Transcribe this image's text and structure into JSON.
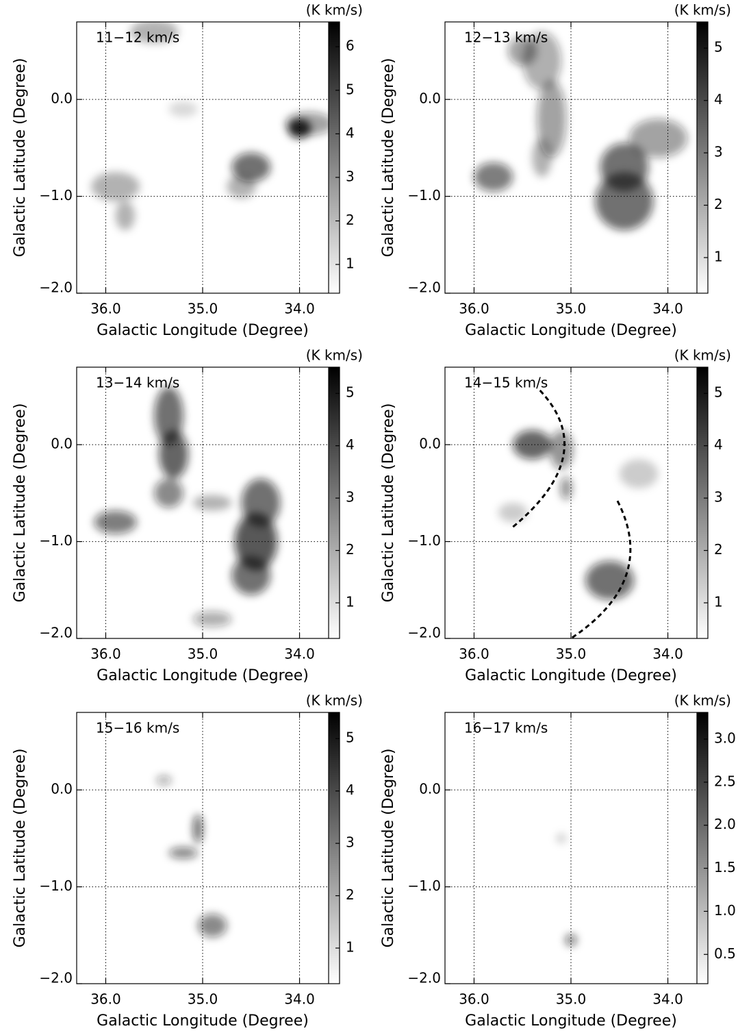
{
  "chart_data": [
    {
      "type": "map",
      "label": "11−12 km/s",
      "units": "(K km/s)",
      "x_label": "Galactic Longitude (Degree)",
      "y_label": "Galactic Latitude (Degree)",
      "xlim": [
        36.3,
        33.7
      ],
      "xticks": [
        {
          "value": 36,
          "label": "36.0"
        },
        {
          "value": 35,
          "label": "35.0"
        },
        {
          "value": 34,
          "label": "34.0"
        }
      ],
      "ylim": [
        -2.0,
        0.8
      ],
      "yticks": [
        {
          "value": 0,
          "label": "0.0"
        },
        {
          "value": -1,
          "label": "−1.0"
        },
        {
          "value": -2,
          "label": "−2.0"
        }
      ],
      "clim": [
        0.34,
        6.57
      ],
      "cticks": [
        1,
        2,
        3,
        4,
        5,
        6
      ],
      "grid": true
    },
    {
      "type": "map",
      "label": "12−13 km/s",
      "units": "(K km/s)",
      "x_label": "Galactic Longitude (Degree)",
      "y_label": "Galactic Latitude (Degree)",
      "xlim": [
        36.3,
        33.7
      ],
      "xticks": [
        {
          "value": 36,
          "label": "36.0"
        },
        {
          "value": 35,
          "label": "35.0"
        },
        {
          "value": 34,
          "label": "34.0"
        }
      ],
      "ylim": [
        -2.0,
        0.8
      ],
      "yticks": [
        {
          "value": 0,
          "label": "0.0"
        },
        {
          "value": -1,
          "label": "−1.0"
        },
        {
          "value": -2,
          "label": "−2.0"
        }
      ],
      "clim": [
        0.32,
        5.5
      ],
      "cticks": [
        1,
        2,
        3,
        4,
        5
      ],
      "grid": true
    },
    {
      "type": "map",
      "label": "13−14 km/s",
      "units": "(K km/s)",
      "x_label": "Galactic Longitude (Degree)",
      "y_label": "Galactic Latitude (Degree)",
      "xlim": [
        36.3,
        33.7
      ],
      "xticks": [
        {
          "value": 36,
          "label": "36.0"
        },
        {
          "value": 35,
          "label": "35.0"
        },
        {
          "value": 34,
          "label": "34.0"
        }
      ],
      "ylim": [
        -2.0,
        0.8
      ],
      "yticks": [
        {
          "value": 0,
          "label": "0.0"
        },
        {
          "value": -1,
          "label": "−1.0"
        },
        {
          "value": -2,
          "label": "−2.0"
        }
      ],
      "clim": [
        0.32,
        5.5
      ],
      "cticks": [
        1,
        2,
        3,
        4,
        5
      ],
      "grid": true
    },
    {
      "type": "map",
      "label": "14−15 km/s",
      "units": "(K km/s)",
      "x_label": "Galactic Longitude (Degree)",
      "y_label": "Galactic Latitude (Degree)",
      "xlim": [
        36.3,
        33.7
      ],
      "xticks": [
        {
          "value": 36,
          "label": "36.0"
        },
        {
          "value": 35,
          "label": "35.0"
        },
        {
          "value": 34,
          "label": "34.0"
        }
      ],
      "ylim": [
        -2.0,
        0.8
      ],
      "yticks": [
        {
          "value": 0,
          "label": "0.0"
        },
        {
          "value": -1,
          "label": "−1.0"
        },
        {
          "value": -2,
          "label": "−2.0"
        }
      ],
      "clim": [
        0.32,
        5.5
      ],
      "cticks": [
        1,
        2,
        3,
        4,
        5
      ],
      "grid": true
    },
    {
      "type": "map",
      "label": "15−16 km/s",
      "units": "(K km/s)",
      "x_label": "Galactic Longitude (Degree)",
      "y_label": "Galactic Latitude (Degree)",
      "xlim": [
        36.3,
        33.7
      ],
      "xticks": [
        {
          "value": 36,
          "label": "36.0"
        },
        {
          "value": 35,
          "label": "35.0"
        },
        {
          "value": 34,
          "label": "34.0"
        }
      ],
      "ylim": [
        -2.0,
        0.8
      ],
      "yticks": [
        {
          "value": 0,
          "label": "0.0"
        },
        {
          "value": -1,
          "label": "−1.0"
        },
        {
          "value": -2,
          "label": "−2.0"
        }
      ],
      "clim": [
        0.32,
        5.5
      ],
      "cticks": [
        1,
        2,
        3,
        4,
        5
      ],
      "grid": true
    },
    {
      "type": "map",
      "label": "16−17 km/s",
      "units": "(K km/s)",
      "x_label": "Galactic Longitude (Degree)",
      "y_label": "Galactic Latitude (Degree)",
      "xlim": [
        36.3,
        33.7
      ],
      "xticks": [
        {
          "value": 36,
          "label": "36.0"
        },
        {
          "value": 35,
          "label": "35.0"
        },
        {
          "value": 34,
          "label": "34.0"
        }
      ],
      "ylim": [
        -2.0,
        0.8
      ],
      "yticks": [
        {
          "value": 0,
          "label": "0.0"
        },
        {
          "value": -1,
          "label": "−1.0"
        },
        {
          "value": -2,
          "label": "−2.0"
        }
      ],
      "clim": [
        0.16,
        3.31
      ],
      "cticks": [
        {
          "value": 0.5,
          "label": "0.5"
        },
        {
          "value": 1.0,
          "label": "1.0"
        },
        {
          "value": 1.5,
          "label": "1.5"
        },
        {
          "value": 2.0,
          "label": "2.0"
        },
        {
          "value": 2.5,
          "label": "2.5"
        },
        {
          "value": 3.0,
          "label": "3.0"
        }
      ],
      "grid": true
    }
  ]
}
